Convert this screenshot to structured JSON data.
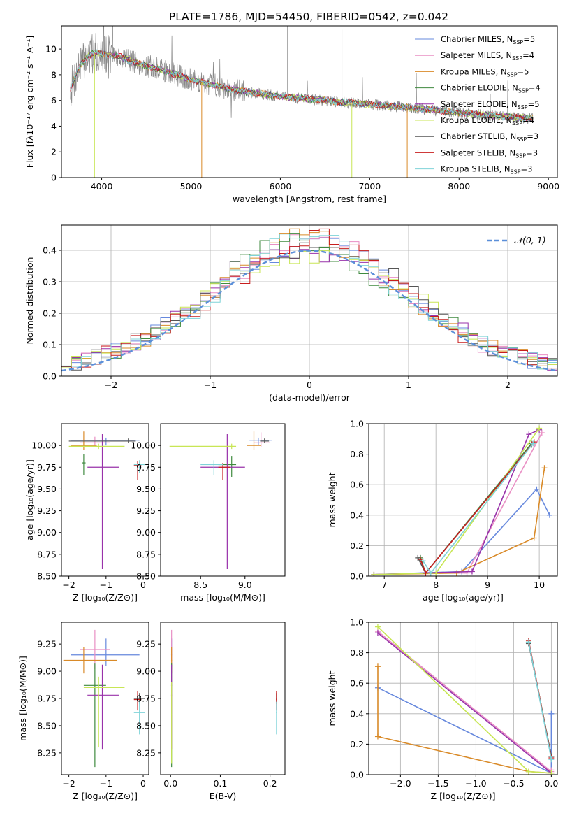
{
  "figure_title": "PLATE=1786, MJD=54450, FIBERID=0542, z=0.042",
  "series": [
    {
      "base": "Chabrier MILES",
      "n": "5",
      "color": "#6688dd"
    },
    {
      "base": "Salpeter MILES",
      "n": "4",
      "color": "#e98fc4"
    },
    {
      "base": "Kroupa MILES",
      "n": "5",
      "color": "#d98a28"
    },
    {
      "base": "Chabrier ELODIE",
      "n": "4",
      "color": "#3f8a3f"
    },
    {
      "base": "Salpeter ELODIE",
      "n": "5",
      "color": "#9932aa"
    },
    {
      "base": "Kroupa ELODIE",
      "n": "4",
      "color": "#c8e655"
    },
    {
      "base": "Chabrier STELIB",
      "n": "3",
      "color": "#555555"
    },
    {
      "base": "Salpeter STELIB",
      "n": "3",
      "color": "#c81e1e"
    },
    {
      "base": "Kroupa STELIB",
      "n": "3",
      "color": "#7fd3d8"
    }
  ],
  "legend_nssp_prefix": "N",
  "legend_nssp_sub": "SSP",
  "legend_nssp_eq": "=",
  "chart_data": [
    {
      "id": "spectrum",
      "type": "line",
      "xlabel": "wavelength [Angstrom, rest frame]",
      "ylabel": "Flux [fλ10⁻¹⁷ erg cm⁻² s⁻¹ A⁻¹]",
      "xlim": [
        3550,
        9100
      ],
      "ylim": [
        0,
        11.8
      ],
      "xticks": [
        4000,
        5000,
        6000,
        7000,
        8000,
        9000
      ],
      "yticks": [
        0,
        2,
        4,
        6,
        8,
        10
      ],
      "observed_color": "#888888",
      "continuum": {
        "x": [
          3650,
          3750,
          3850,
          3950,
          4050,
          4200,
          4400,
          4600,
          4800,
          5000,
          5200,
          5500,
          6000,
          6500,
          7000,
          7500,
          8000,
          8500,
          8800
        ],
        "y": [
          6.9,
          8.6,
          9.5,
          9.7,
          9.6,
          9.4,
          8.9,
          8.5,
          8.1,
          7.6,
          7.3,
          6.8,
          6.3,
          6.0,
          5.7,
          5.4,
          5.05,
          4.75,
          4.6
        ]
      },
      "model_x_range": [
        3650,
        8830
      ],
      "observed_x_range": [
        3650,
        8830
      ],
      "legend_position": "top-right"
    },
    {
      "id": "residuals",
      "type": "histogram",
      "xlabel": "(data-model)/error",
      "ylabel": "Normed distribution",
      "xlim": [
        -2.5,
        2.5
      ],
      "ylim": [
        0,
        0.48
      ],
      "xticks": [
        -2,
        -1,
        0,
        1,
        2
      ],
      "yticks": [
        0.0,
        0.1,
        0.2,
        0.3,
        0.4
      ],
      "bin_width": 0.1,
      "reference_curve": {
        "label": "𝒩(0, 1)",
        "mean": 0,
        "sigma": 1,
        "style": "dashed",
        "color": "#5b8fd9"
      },
      "legend_position": "top-right",
      "grid": true
    },
    {
      "id": "age_vs_Z",
      "type": "errorbar",
      "xlabel": "Z [log₁₀(Z/Z⊙)]",
      "ylabel": "age  [log₁₀(age/yr)]",
      "xlim": [
        -2.2,
        0.15
      ],
      "ylim": [
        8.5,
        10.25
      ],
      "xticks": [
        -2,
        -1,
        0
      ],
      "yticks": [
        8.5,
        8.75,
        9.0,
        9.25,
        9.5,
        9.75,
        10.0
      ],
      "points": [
        {
          "x": -1.0,
          "xerr": [
            0.95,
            0.9
          ],
          "y": 10.06,
          "yerr": [
            0.06,
            0.03
          ]
        },
        {
          "x": -1.3,
          "xerr": [
            0.4,
            0.4
          ],
          "y": 10.03,
          "yerr": [
            0.05,
            0.07
          ]
        },
        {
          "x": -1.6,
          "xerr": [
            0.35,
            0.35
          ],
          "y": 10.0,
          "yerr": [
            0.05,
            0.16
          ]
        },
        {
          "x": -1.6,
          "xerr": [
            0.05,
            0.05
          ],
          "y": 9.8,
          "yerr": [
            0.14,
            0.1
          ]
        },
        {
          "x": -1.1,
          "xerr": [
            0.4,
            0.45
          ],
          "y": 9.75,
          "yerr": [
            1.17,
            0.38
          ]
        },
        {
          "x": -1.2,
          "xerr": [
            0.8,
            0.7
          ],
          "y": 9.99,
          "yerr": [
            0.03,
            0.03
          ]
        },
        {
          "x": -0.4,
          "xerr": [
            1.6,
            0.2
          ],
          "y": 10.05,
          "yerr": [
            0.02,
            0.03
          ]
        },
        {
          "x": -0.15,
          "xerr": [
            0.1,
            0.1
          ],
          "y": 9.77,
          "yerr": [
            0.17,
            0.05
          ]
        },
        {
          "x": -0.1,
          "xerr": [
            0.15,
            0.15
          ],
          "y": 9.78,
          "yerr": [
            0.1,
            0.05
          ]
        }
      ]
    },
    {
      "id": "age_vs_mass",
      "type": "errorbar",
      "xlabel": "mass [log₁₀(M/M⊙)]",
      "ylabel": "",
      "xlim": [
        8.05,
        9.45
      ],
      "ylim": [
        8.5,
        10.25
      ],
      "xticks": [
        8.5,
        9.0
      ],
      "yticks": [
        8.5,
        8.75,
        9.0,
        9.25,
        9.5,
        9.75,
        10.0
      ],
      "points": [
        {
          "x": 9.15,
          "xerr": [
            0.1,
            0.15
          ],
          "y": 10.06,
          "yerr": [
            0.06,
            0.03
          ]
        },
        {
          "x": 9.18,
          "xerr": [
            0.08,
            0.1
          ],
          "y": 10.03,
          "yerr": [
            0.05,
            0.12
          ]
        },
        {
          "x": 9.1,
          "xerr": [
            0.08,
            0.08
          ],
          "y": 10.0,
          "yerr": [
            0.05,
            0.16
          ]
        },
        {
          "x": 8.85,
          "xerr": [
            0.15,
            0.05
          ],
          "y": 9.78,
          "yerr": [
            0.14,
            0.1
          ]
        },
        {
          "x": 8.8,
          "xerr": [
            0.3,
            0.2
          ],
          "y": 9.75,
          "yerr": [
            1.17,
            0.38
          ]
        },
        {
          "x": 8.85,
          "xerr": [
            0.7,
            0.05
          ],
          "y": 9.99,
          "yerr": [
            0.03,
            0.03
          ]
        },
        {
          "x": 9.22,
          "xerr": [
            0.05,
            0.05
          ],
          "y": 10.05,
          "yerr": [
            0.02,
            0.03
          ]
        },
        {
          "x": 8.75,
          "xerr": [
            0.05,
            0.08
          ],
          "y": 9.75,
          "yerr": [
            0.15,
            0.05
          ]
        },
        {
          "x": 8.65,
          "xerr": [
            0.15,
            0.1
          ],
          "y": 9.78,
          "yerr": [
            0.12,
            0.05
          ]
        }
      ]
    },
    {
      "id": "weight_vs_age",
      "type": "line",
      "xlabel": "age  [log₁₀(age/yr)]",
      "ylabel": "mass weight",
      "xlim": [
        6.7,
        10.35
      ],
      "ylim": [
        0,
        1.0
      ],
      "xticks": [
        7,
        8,
        9,
        10
      ],
      "yticks": [
        0.0,
        0.2,
        0.4,
        0.6,
        0.8,
        1.0
      ],
      "grid": true,
      "series_points": [
        {
          "x": [
            6.8,
            8.5,
            9.95,
            10.2
          ],
          "y": [
            0.01,
            0.03,
            0.57,
            0.4
          ]
        },
        {
          "x": [
            7.7,
            7.8,
            8.6,
            10.05
          ],
          "y": [
            0.12,
            0.02,
            0.02,
            0.94
          ]
        },
        {
          "x": [
            6.8,
            8.4,
            9.9,
            10.1
          ],
          "y": [
            0.01,
            0.02,
            0.25,
            0.71
          ]
        },
        {
          "x": [
            7.7,
            7.8,
            9.85
          ],
          "y": [
            0.12,
            0.02,
            0.87
          ]
        },
        {
          "x": [
            6.8,
            8.7,
            9.8,
            10.0
          ],
          "y": [
            0.01,
            0.03,
            0.93,
            0.96
          ]
        },
        {
          "x": [
            6.8,
            8.0,
            10.0
          ],
          "y": [
            0.01,
            0.02,
            0.97
          ]
        },
        {
          "x": [
            7.65,
            7.8,
            9.85
          ],
          "y": [
            0.12,
            0.02,
            0.86
          ]
        },
        {
          "x": [
            7.7,
            7.8,
            9.9
          ],
          "y": [
            0.11,
            0.02,
            0.88
          ]
        },
        {
          "x": [
            7.75,
            7.9,
            9.88
          ],
          "y": [
            0.1,
            0.02,
            0.87
          ]
        }
      ]
    },
    {
      "id": "mass_vs_Z",
      "type": "errorbar",
      "xlabel": "Z [log₁₀(Z/Z⊙)]",
      "ylabel": "mass [log₁₀(M/M⊙)]",
      "xlim": [
        -2.2,
        0.15
      ],
      "ylim": [
        8.05,
        9.45
      ],
      "xticks": [
        -2,
        -1,
        0
      ],
      "yticks": [
        8.25,
        8.5,
        8.75,
        9.0,
        9.25
      ],
      "points": [
        {
          "x": -1.0,
          "xerr": [
            0.95,
            0.9
          ],
          "y": 9.15,
          "yerr": [
            0.1,
            0.15
          ]
        },
        {
          "x": -1.3,
          "xerr": [
            0.4,
            0.4
          ],
          "y": 9.2,
          "yerr": [
            0.18,
            0.18
          ]
        },
        {
          "x": -1.6,
          "xerr": [
            0.55,
            0.9
          ],
          "y": 9.1,
          "yerr": [
            0.12,
            0.12
          ]
        },
        {
          "x": -1.3,
          "xerr": [
            0.3,
            0.3
          ],
          "y": 8.87,
          "yerr": [
            0.75,
            0.2
          ]
        },
        {
          "x": -1.1,
          "xerr": [
            0.4,
            0.45
          ],
          "y": 8.78,
          "yerr": [
            0.5,
            0.28
          ]
        },
        {
          "x": -1.2,
          "xerr": [
            0.4,
            0.7
          ],
          "y": 8.85,
          "yerr": [
            0.55,
            0.1
          ]
        },
        {
          "x": -0.1,
          "xerr": [
            0.15,
            0.15
          ],
          "y": 8.75,
          "yerr": [
            0.05,
            0.05
          ]
        },
        {
          "x": -0.15,
          "xerr": [
            0.1,
            0.1
          ],
          "y": 8.74,
          "yerr": [
            0.1,
            0.08
          ]
        },
        {
          "x": -0.1,
          "xerr": [
            0.15,
            0.15
          ],
          "y": 8.62,
          "yerr": [
            0.2,
            0.1
          ]
        }
      ]
    },
    {
      "id": "mass_vs_ebv",
      "type": "errorbar",
      "xlabel": "E(B-V)",
      "ylabel": "",
      "xlim": [
        -0.02,
        0.23
      ],
      "ylim": [
        8.05,
        9.45
      ],
      "xticks": [
        0.0,
        0.1,
        0.2
      ],
      "yticks": [
        8.25,
        8.5,
        8.75,
        9.0,
        9.25
      ],
      "points": [
        {
          "x": 0.002,
          "xerr": [
            0.001,
            0.001
          ],
          "y": 9.15,
          "yerr": [
            0.1,
            0.15
          ]
        },
        {
          "x": 0.002,
          "xerr": [
            0.001,
            0.001
          ],
          "y": 9.2,
          "yerr": [
            0.18,
            0.18
          ]
        },
        {
          "x": 0.002,
          "xerr": [
            0.001,
            0.001
          ],
          "y": 9.1,
          "yerr": [
            0.12,
            0.12
          ]
        },
        {
          "x": 0.002,
          "xerr": [
            0.001,
            0.001
          ],
          "y": 8.87,
          "yerr": [
            0.75,
            0.2
          ]
        },
        {
          "x": 0.002,
          "xerr": [
            0.001,
            0.001
          ],
          "y": 8.78,
          "yerr": [
            0.5,
            0.28
          ]
        },
        {
          "x": 0.002,
          "xerr": [
            0.001,
            0.001
          ],
          "y": 8.6,
          "yerr": [
            0.45,
            0.3
          ]
        },
        {
          "x": 0.213,
          "xerr": [
            0.001,
            0.001
          ],
          "y": 8.75,
          "yerr": [
            0.05,
            0.05
          ]
        },
        {
          "x": 0.213,
          "xerr": [
            0.001,
            0.001
          ],
          "y": 8.74,
          "yerr": [
            0.1,
            0.08
          ]
        },
        {
          "x": 0.213,
          "xerr": [
            0.001,
            0.001
          ],
          "y": 8.62,
          "yerr": [
            0.2,
            0.1
          ]
        }
      ]
    },
    {
      "id": "weight_vs_Z",
      "type": "line",
      "xlabel": "Z [log₁₀(Z/Z⊙)]",
      "ylabel": "mass weight",
      "xlim": [
        -2.42,
        0.08
      ],
      "ylim": [
        0,
        1.0
      ],
      "xticks": [
        -2.0,
        -1.5,
        -1.0,
        -0.5,
        0.0
      ],
      "yticks": [
        0.0,
        0.2,
        0.4,
        0.6,
        0.8,
        1.0
      ],
      "grid": true,
      "series_points": [
        {
          "x": [
            -2.3,
            0.0,
            0.0
          ],
          "y": [
            0.57,
            0.01,
            0.4
          ]
        },
        {
          "x": [
            -2.3,
            0.0,
            0.0
          ],
          "y": [
            0.94,
            0.02,
            0.03
          ]
        },
        {
          "x": [
            -2.3,
            -2.3,
            -0.3,
            0.0
          ],
          "y": [
            0.71,
            0.25,
            0.02,
            0.01
          ]
        },
        {
          "x": [
            -0.3,
            0.0
          ],
          "y": [
            0.87,
            0.12
          ]
        },
        {
          "x": [
            -2.3,
            0.0
          ],
          "y": [
            0.93,
            0.01
          ]
        },
        {
          "x": [
            -2.3,
            -0.3,
            0.0
          ],
          "y": [
            0.97,
            0.02,
            0.01
          ]
        },
        {
          "x": [
            -0.3,
            0.0
          ],
          "y": [
            0.86,
            0.12
          ]
        },
        {
          "x": [
            -0.3,
            0.0
          ],
          "y": [
            0.88,
            0.11
          ]
        },
        {
          "x": [
            -0.3,
            0.0
          ],
          "y": [
            0.87,
            0.1
          ]
        }
      ]
    }
  ]
}
